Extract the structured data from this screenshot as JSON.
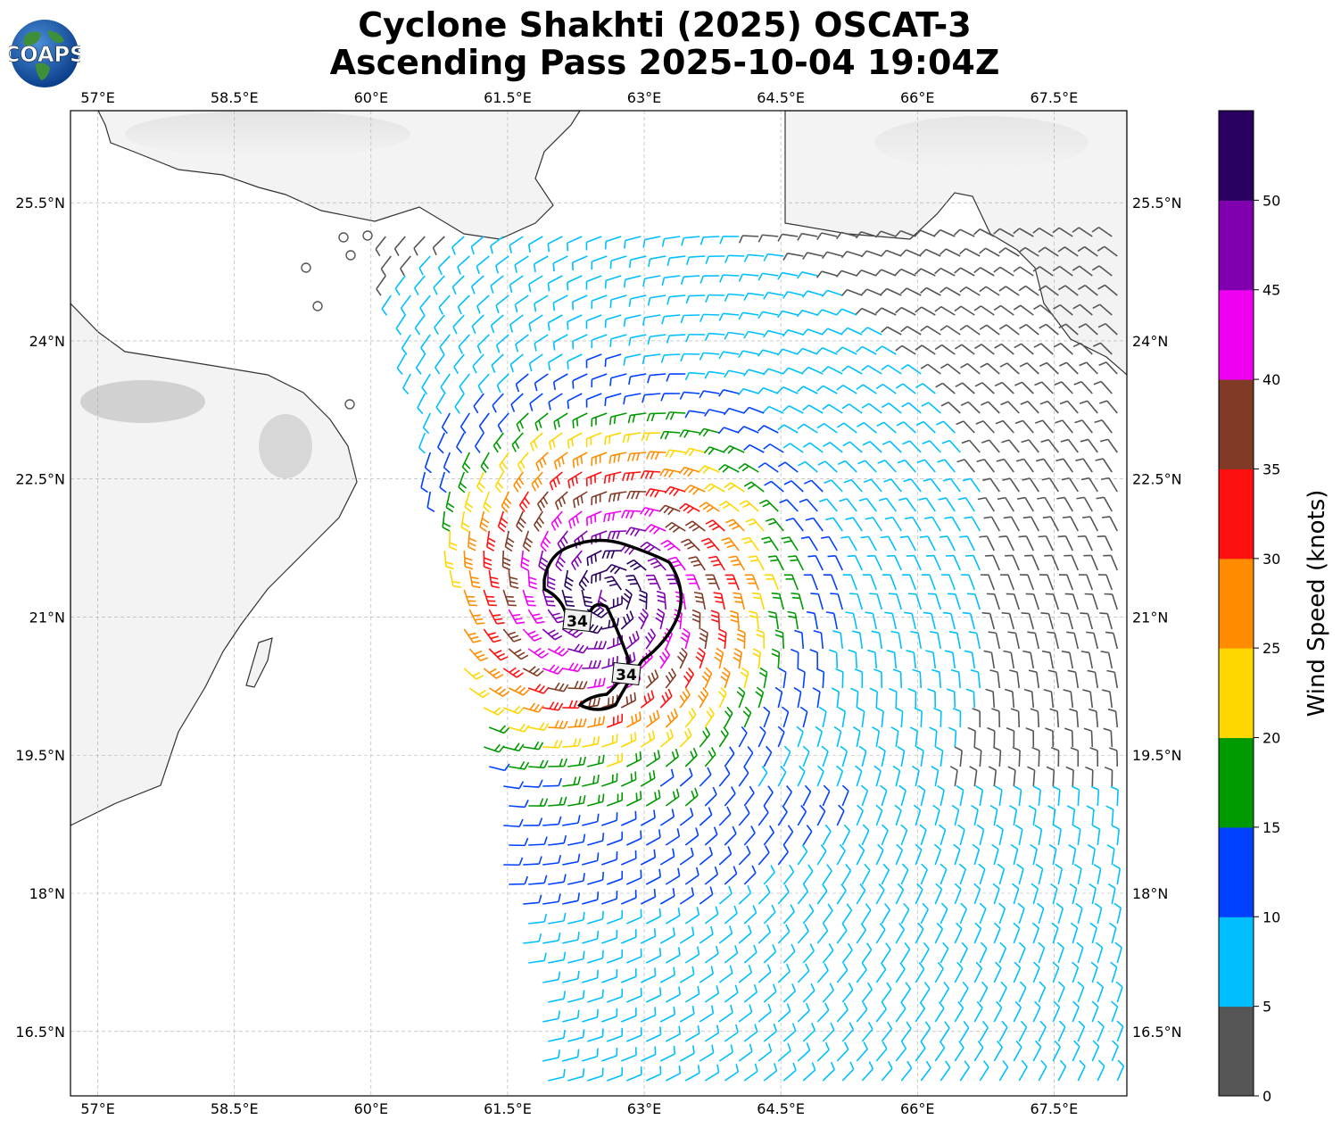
{
  "title": {
    "line1": "Cyclone Shakhti (2025) OSCAT-3",
    "line2": "Ascending Pass 2025-10-04 19:04Z"
  },
  "logo": {
    "text": "COAPS",
    "icon": "globe-icon"
  },
  "map": {
    "lon_range": [
      56.7,
      68.3
    ],
    "lat_range": [
      15.8,
      26.5
    ],
    "lon_ticks": [
      "57°E",
      "58.5°E",
      "60°E",
      "61.5°E",
      "63°E",
      "64.5°E",
      "66°E",
      "67.5°E"
    ],
    "lat_ticks": [
      "25.5°N",
      "24°N",
      "22.5°N",
      "21°N",
      "19.5°N",
      "18°N",
      "16.5°N"
    ],
    "wind_radius_labels": [
      "34",
      "34"
    ],
    "land_color": "#f4f4f4",
    "coast_color": "#333333"
  },
  "colorbar": {
    "label": "Wind Speed (knots)",
    "tick_labels": [
      "0",
      "5",
      "10",
      "15",
      "20",
      "25",
      "30",
      "35",
      "40",
      "45",
      "50"
    ],
    "colors": [
      "#555555",
      "#00bfff",
      "#0040ff",
      "#009900",
      "#ffd700",
      "#ff8c00",
      "#ff1010",
      "#803a25",
      "#f000f0",
      "#8000b0",
      "#2a0060"
    ]
  }
}
